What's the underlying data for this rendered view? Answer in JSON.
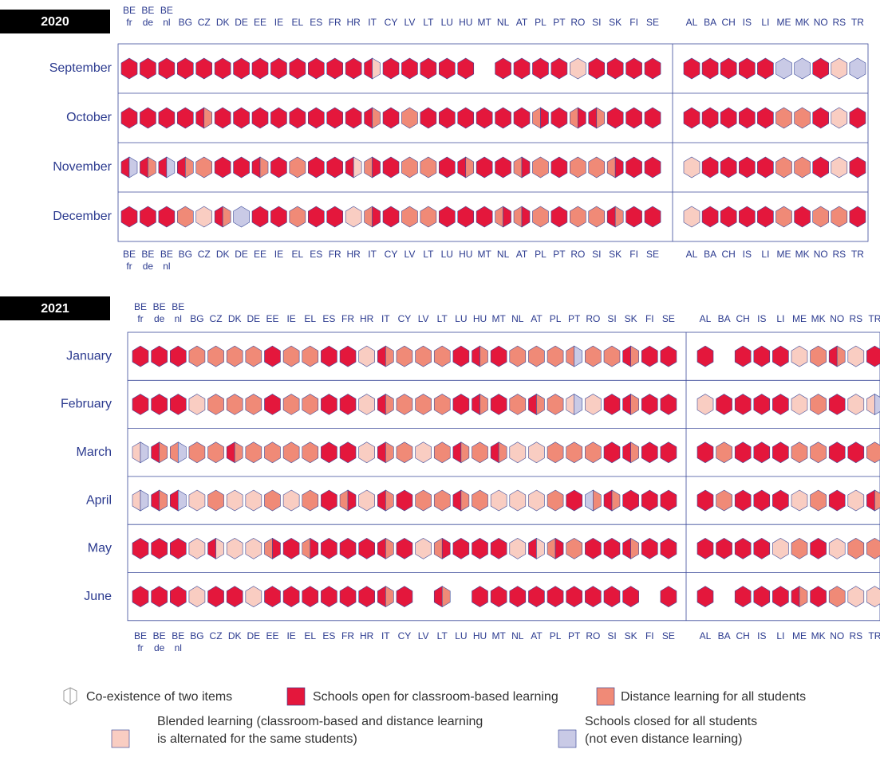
{
  "legend": [
    [
      "Co-existence of two items"
    ],
    [
      "Schools open for classroom-based learning"
    ],
    [
      "Distance learning for all students"
    ],
    [
      "Blended learning (classroom-based and distance learning",
      "is alternated for the same students)"
    ],
    [
      "Schools closed for all students",
      "(not even distance learning)"
    ]
  ],
  "countries": [
    [
      "BE",
      "fr"
    ],
    [
      "BE",
      "de"
    ],
    [
      "BE",
      "nl"
    ],
    "BG",
    "CZ",
    "DK",
    "DE",
    "EE",
    "IE",
    "EL",
    "ES",
    "FR",
    "HR",
    "IT",
    "CY",
    "LV",
    "LT",
    "LU",
    "HU",
    "MT",
    "NL",
    "AT",
    "PL",
    "PT",
    "RO",
    "SI",
    "SK",
    "FI",
    "SE",
    "AL",
    "BA",
    "CH",
    "IS",
    "LI",
    "ME",
    "MK",
    "NO",
    "RS",
    "TR"
  ],
  "panels": [
    {
      "year": "2020",
      "months": [
        "September",
        "October",
        "November",
        "December"
      ],
      "cells": [
        [
          [
            1
          ],
          [
            1
          ],
          [
            1
          ],
          [
            1
          ],
          [
            1
          ],
          [
            1
          ],
          [
            1
          ],
          [
            1
          ],
          [
            1
          ],
          [
            1
          ],
          [
            1
          ],
          [
            1
          ],
          [
            1
          ],
          [
            1,
            3
          ],
          [
            1
          ],
          [
            1
          ],
          [
            1
          ],
          [
            1
          ],
          [
            1
          ],
          null,
          [
            1
          ],
          [
            1
          ],
          [
            1
          ],
          [
            1
          ],
          [
            3
          ],
          [
            1
          ],
          [
            1
          ],
          [
            1
          ],
          [
            1
          ],
          [
            1
          ],
          [
            1
          ],
          [
            1
          ],
          [
            1
          ],
          [
            1
          ],
          [
            4
          ],
          [
            4
          ],
          [
            1
          ],
          [
            3
          ],
          [
            4
          ]
        ],
        [
          [
            1
          ],
          [
            1
          ],
          [
            1
          ],
          [
            1
          ],
          [
            1,
            2
          ],
          [
            1
          ],
          [
            1
          ],
          [
            1
          ],
          [
            1
          ],
          [
            1
          ],
          [
            1
          ],
          [
            1
          ],
          [
            1
          ],
          [
            1,
            2
          ],
          [
            1
          ],
          [
            2
          ],
          [
            1
          ],
          [
            1
          ],
          [
            1
          ],
          [
            1
          ],
          [
            1
          ],
          [
            1
          ],
          [
            2,
            1
          ],
          [
            1
          ],
          [
            2,
            1
          ],
          [
            1,
            2
          ],
          [
            1
          ],
          [
            1
          ],
          [
            1
          ],
          [
            1
          ],
          [
            1
          ],
          [
            1
          ],
          [
            1
          ],
          [
            1
          ],
          [
            2
          ],
          [
            2
          ],
          [
            1
          ],
          [
            3
          ],
          [
            1
          ]
        ],
        [
          [
            1,
            4
          ],
          [
            1,
            2
          ],
          [
            1,
            4
          ],
          [
            1,
            2
          ],
          [
            2
          ],
          [
            1
          ],
          [
            1
          ],
          [
            1,
            2
          ],
          [
            1
          ],
          [
            2
          ],
          [
            1
          ],
          [
            1
          ],
          [
            1,
            3
          ],
          [
            2,
            1
          ],
          [
            1
          ],
          [
            2
          ],
          [
            2
          ],
          [
            1
          ],
          [
            1,
            2
          ],
          [
            1
          ],
          [
            1
          ],
          [
            2,
            1
          ],
          [
            2
          ],
          [
            1
          ],
          [
            2
          ],
          [
            2
          ],
          [
            2,
            1
          ],
          [
            1
          ],
          [
            1
          ],
          [
            3
          ],
          [
            1
          ],
          [
            1
          ],
          [
            1
          ],
          [
            1
          ],
          [
            2
          ],
          [
            2
          ],
          [
            1
          ],
          [
            3
          ],
          [
            1
          ]
        ],
        [
          [
            1
          ],
          [
            1
          ],
          [
            1
          ],
          [
            2
          ],
          [
            3
          ],
          [
            1,
            2
          ],
          [
            4
          ],
          [
            1
          ],
          [
            1
          ],
          [
            2
          ],
          [
            1
          ],
          [
            1
          ],
          [
            3
          ],
          [
            2,
            1
          ],
          [
            1
          ],
          [
            2
          ],
          [
            2
          ],
          [
            1
          ],
          [
            1
          ],
          [
            1
          ],
          [
            2,
            1
          ],
          [
            2,
            1
          ],
          [
            2
          ],
          [
            1
          ],
          [
            2
          ],
          [
            2
          ],
          [
            1,
            2
          ],
          [
            1
          ],
          [
            1
          ],
          [
            3
          ],
          [
            1
          ],
          [
            1
          ],
          [
            1
          ],
          [
            1
          ],
          [
            2
          ],
          [
            1
          ],
          [
            2
          ],
          [
            2
          ],
          [
            1
          ]
        ]
      ]
    },
    {
      "year": "2021",
      "months": [
        "January",
        "February",
        "March",
        "April",
        "May",
        "June"
      ],
      "cells": [
        [
          [
            1
          ],
          [
            1
          ],
          [
            1
          ],
          [
            2
          ],
          [
            2
          ],
          [
            2
          ],
          [
            2
          ],
          [
            1
          ],
          [
            2
          ],
          [
            2
          ],
          [
            1
          ],
          [
            1
          ],
          [
            3
          ],
          [
            1,
            2
          ],
          [
            2
          ],
          [
            2
          ],
          [
            2
          ],
          [
            1
          ],
          [
            1,
            2
          ],
          [
            1
          ],
          [
            2
          ],
          [
            2
          ],
          [
            2
          ],
          [
            2,
            4
          ],
          [
            2
          ],
          [
            2
          ],
          [
            1,
            2
          ],
          [
            1
          ],
          [
            1
          ],
          [
            1
          ],
          null,
          [
            1
          ],
          [
            1
          ],
          [
            1
          ],
          [
            3
          ],
          [
            2
          ],
          [
            1,
            2
          ],
          [
            3
          ],
          [
            1
          ]
        ],
        [
          [
            1
          ],
          [
            1
          ],
          [
            1
          ],
          [
            3
          ],
          [
            2
          ],
          [
            2
          ],
          [
            2
          ],
          [
            1
          ],
          [
            2
          ],
          [
            2
          ],
          [
            1
          ],
          [
            1
          ],
          [
            3
          ],
          [
            1,
            2
          ],
          [
            2
          ],
          [
            2
          ],
          [
            2
          ],
          [
            1
          ],
          [
            1,
            2
          ],
          [
            1
          ],
          [
            2
          ],
          [
            1,
            2
          ],
          [
            2
          ],
          [
            3,
            4
          ],
          [
            3
          ],
          [
            1
          ],
          [
            1,
            2
          ],
          [
            1
          ],
          [
            1
          ],
          [
            3
          ],
          [
            1
          ],
          [
            1
          ],
          [
            1
          ],
          [
            1
          ],
          [
            3
          ],
          [
            2
          ],
          [
            1
          ],
          [
            3
          ],
          [
            3,
            4
          ]
        ],
        [
          [
            3,
            4
          ],
          [
            1,
            2
          ],
          [
            2,
            4
          ],
          [
            2
          ],
          [
            2
          ],
          [
            1,
            2
          ],
          [
            2
          ],
          [
            2
          ],
          [
            2
          ],
          [
            2
          ],
          [
            1
          ],
          [
            1
          ],
          [
            3
          ],
          [
            1,
            2
          ],
          [
            2
          ],
          [
            3
          ],
          [
            2
          ],
          [
            1,
            2
          ],
          [
            2
          ],
          [
            1,
            2
          ],
          [
            3
          ],
          [
            3
          ],
          [
            2
          ],
          [
            2
          ],
          [
            2
          ],
          [
            1
          ],
          [
            1,
            2
          ],
          [
            1
          ],
          [
            1
          ],
          [
            1
          ],
          [
            2
          ],
          [
            1
          ],
          [
            1
          ],
          [
            1
          ],
          [
            2
          ],
          [
            2
          ],
          [
            1
          ],
          [
            1
          ],
          [
            2
          ]
        ],
        [
          [
            3,
            4
          ],
          [
            1,
            2
          ],
          [
            1,
            4
          ],
          [
            3
          ],
          [
            2
          ],
          [
            3
          ],
          [
            3
          ],
          [
            2
          ],
          [
            3
          ],
          [
            2
          ],
          [
            1
          ],
          [
            2,
            1
          ],
          [
            3
          ],
          [
            1,
            2
          ],
          [
            1
          ],
          [
            2
          ],
          [
            2
          ],
          [
            1,
            2
          ],
          [
            2
          ],
          [
            3
          ],
          [
            3
          ],
          [
            3
          ],
          [
            2
          ],
          [
            1
          ],
          [
            4,
            2
          ],
          [
            1,
            2
          ],
          [
            1
          ],
          [
            1
          ],
          [
            1
          ],
          [
            1
          ],
          [
            2
          ],
          [
            1
          ],
          [
            1
          ],
          [
            1
          ],
          [
            3
          ],
          [
            2
          ],
          [
            1
          ],
          [
            3
          ],
          [
            1,
            2
          ]
        ],
        [
          [
            1
          ],
          [
            1
          ],
          [
            1
          ],
          [
            3
          ],
          [
            1,
            3
          ],
          [
            3
          ],
          [
            3
          ],
          [
            2,
            1
          ],
          [
            1
          ],
          [
            2,
            1
          ],
          [
            1
          ],
          [
            1
          ],
          [
            1
          ],
          [
            1,
            2
          ],
          [
            1
          ],
          [
            3
          ],
          [
            2,
            1
          ],
          [
            1
          ],
          [
            1
          ],
          [
            1
          ],
          [
            3
          ],
          [
            1,
            3
          ],
          [
            2,
            1
          ],
          [
            2
          ],
          [
            1
          ],
          [
            1
          ],
          [
            1,
            2
          ],
          [
            1
          ],
          [
            1
          ],
          [
            1
          ],
          [
            1
          ],
          [
            1
          ],
          [
            1
          ],
          [
            3
          ],
          [
            2
          ],
          [
            1
          ],
          [
            3
          ],
          [
            2
          ],
          [
            2
          ]
        ],
        [
          [
            1
          ],
          [
            1
          ],
          [
            1
          ],
          [
            3
          ],
          [
            1
          ],
          [
            1
          ],
          [
            3
          ],
          [
            1
          ],
          [
            1
          ],
          [
            1
          ],
          [
            1
          ],
          [
            1
          ],
          [
            1
          ],
          [
            1,
            2
          ],
          [
            1
          ],
          null,
          [
            1,
            2
          ],
          null,
          [
            1
          ],
          [
            1
          ],
          [
            1
          ],
          [
            1
          ],
          [
            1
          ],
          [
            1
          ],
          [
            1
          ],
          [
            1
          ],
          [
            1
          ],
          null,
          [
            1
          ],
          [
            1
          ],
          null,
          [
            1
          ],
          [
            1
          ],
          [
            1
          ],
          [
            1,
            2
          ],
          [
            1
          ],
          [
            2
          ],
          [
            3
          ],
          [
            3
          ]
        ]
      ]
    }
  ]
}
